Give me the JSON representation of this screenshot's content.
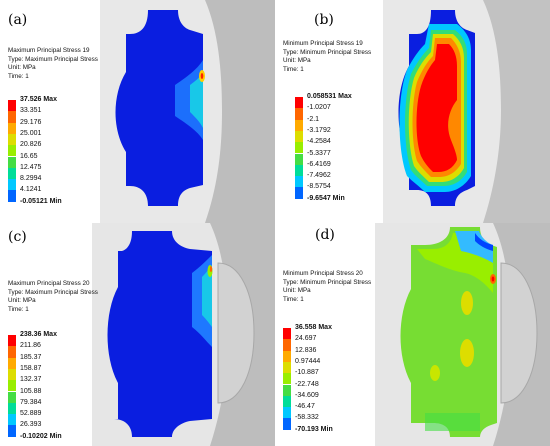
{
  "panels": [
    {
      "label": "(a)",
      "info": [
        "Maximum Principal Stress 19",
        "Type: Maximum Principal Stress",
        "Unit: MPa",
        "Time: 1"
      ],
      "legend": [
        "37.526 Max",
        "33.351",
        "29.176",
        "25.001",
        "20.826",
        "16.65",
        "12.475",
        "8.2994",
        "4.1241",
        "-0.05121 Min"
      ]
    },
    {
      "label": "(b)",
      "info": [
        "Minimum Principal Stress 19",
        "Type: Minimum Principal Stress",
        "Unit: MPa",
        "Time: 1"
      ],
      "legend": [
        "0.058531 Max",
        "-1.0207",
        "-2.1",
        "-3.1792",
        "-4.2584",
        "-5.3377",
        "-6.4169",
        "-7.4962",
        "-8.5754",
        "-9.6547 Min"
      ]
    },
    {
      "label": "(c)",
      "info": [
        "Maximum Principal Stress 20",
        "Type: Maximum Principal Stress",
        "Unit: MPa",
        "Time: 1"
      ],
      "legend": [
        "238.36 Max",
        "211.86",
        "185.37",
        "158.87",
        "132.37",
        "105.88",
        "79.384",
        "52.889",
        "26.393",
        "-0.10202 Min"
      ]
    },
    {
      "label": "(d)",
      "info": [
        "Minimum Principal Stress 20",
        "Type: Minimum Principal Stress",
        "Unit: MPa",
        "Time: 1"
      ],
      "legend": [
        "36.558 Max",
        "24.697",
        "12.836",
        "0.97444",
        "-10.887",
        "-22.748",
        "-34.609",
        "-46.47",
        "-58.332",
        "-70.193 Min"
      ]
    }
  ],
  "legend_colors": [
    "#ff0000",
    "#ff6600",
    "#ffaa00",
    "#dddd00",
    "#99ee00",
    "#44dd44",
    "#00dd99",
    "#00c8ff",
    "#0066ff",
    "#0000ff"
  ]
}
